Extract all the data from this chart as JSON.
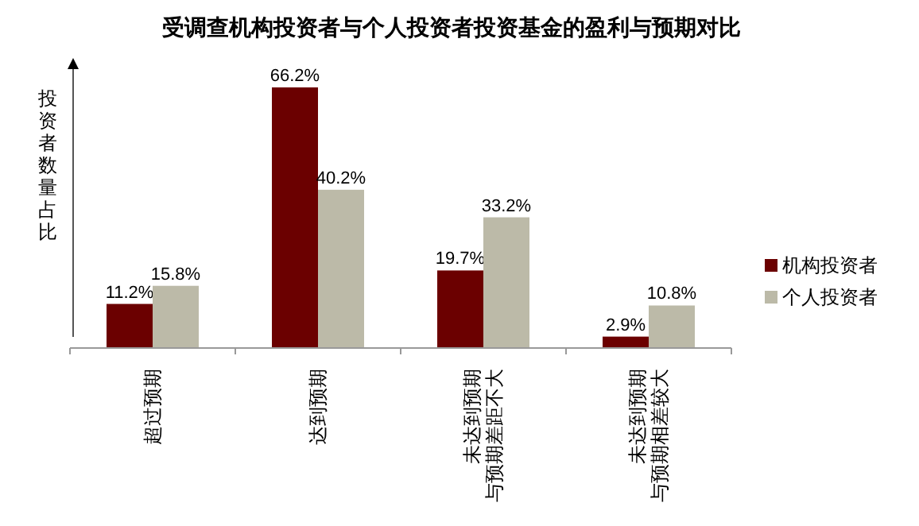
{
  "chart_data": {
    "type": "bar",
    "title": "受调查机构投资者与个人投资者投资基金的盈利与预期对比",
    "ylabel": "投资者数量占比",
    "categories": [
      "超过预期",
      "达到预期",
      "未达到预期与预期差距不大",
      "未达到预期与预期相差较大"
    ],
    "series": [
      {
        "name": "机构投资者",
        "color": "#6b0000",
        "values": [
          11.2,
          66.2,
          19.7,
          2.9
        ],
        "value_labels": [
          "11.2%",
          "66.2%",
          "19.7%",
          "2.9%"
        ]
      },
      {
        "name": "个人投资者",
        "color": "#bcbaa8",
        "values": [
          15.8,
          40.2,
          33.2,
          10.8
        ],
        "value_labels": [
          "15.8%",
          "40.2%",
          "33.2%",
          "10.8%"
        ]
      }
    ],
    "legend": "right",
    "grid": false
  }
}
